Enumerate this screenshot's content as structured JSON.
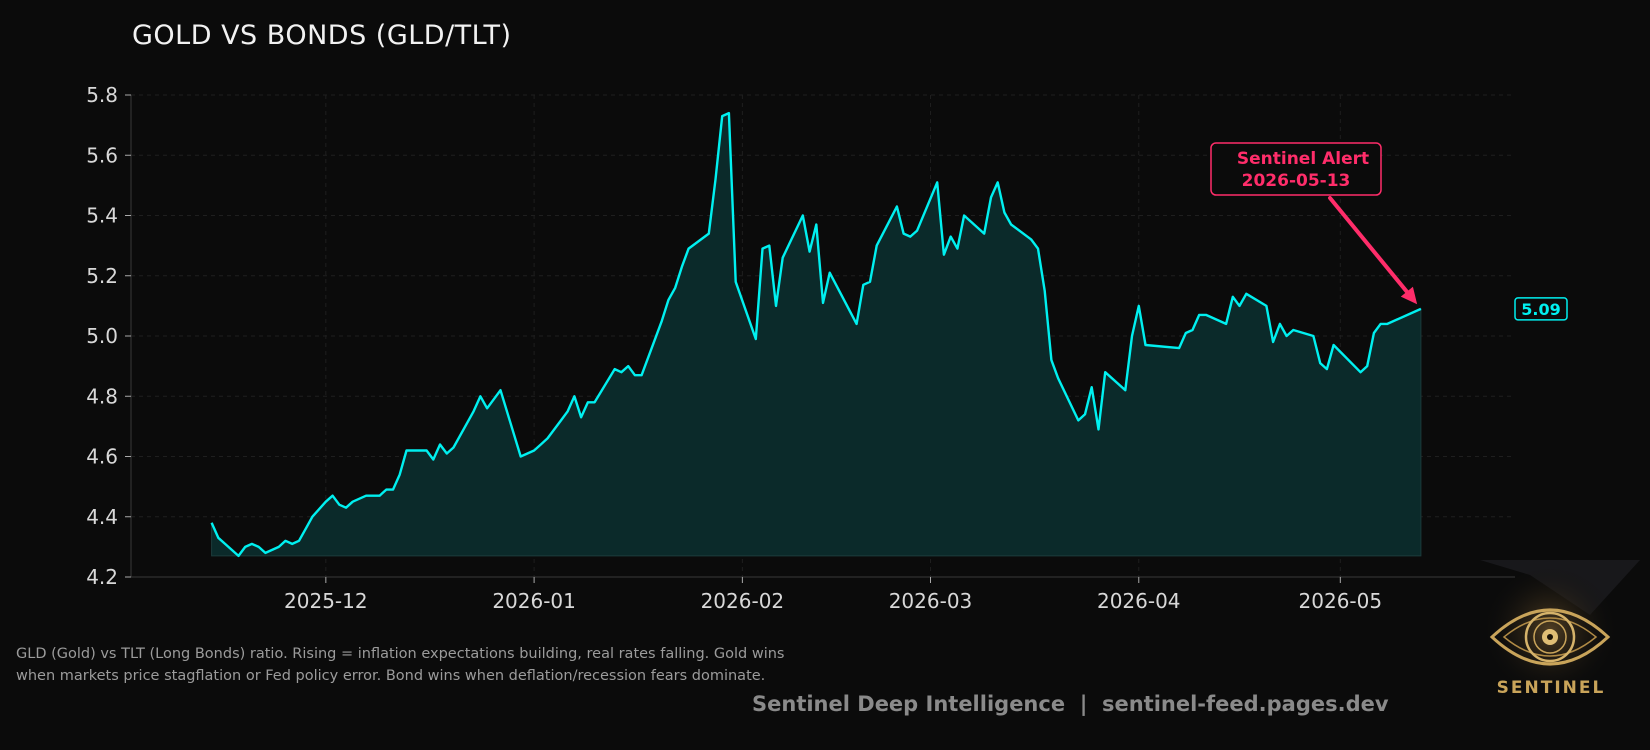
{
  "chart_data": {
    "type": "area",
    "title": "GOLD VS BONDS (GLD/TLT)",
    "xlabel": "",
    "ylabel": "",
    "ylim": [
      4.2,
      5.8
    ],
    "xlim": [
      "2025-11-02",
      "2026-05-27"
    ],
    "grid": true,
    "y_ticks": [
      "4.2",
      "4.4",
      "4.6",
      "4.8",
      "5.0",
      "5.2",
      "5.4",
      "5.6",
      "5.8"
    ],
    "x_ticks": [
      "2025-12",
      "2026-01",
      "2026-02",
      "2026-03",
      "2026-04",
      "2026-05"
    ],
    "series": [
      {
        "color": "#00f0f0",
        "points": [
          [
            "2025-11-14",
            4.38
          ],
          [
            "2025-11-15",
            4.33
          ],
          [
            "2025-11-16",
            4.31
          ],
          [
            "2025-11-17",
            4.29
          ],
          [
            "2025-11-18",
            4.27
          ],
          [
            "2025-11-19",
            4.3
          ],
          [
            "2025-11-20",
            4.31
          ],
          [
            "2025-11-21",
            4.3
          ],
          [
            "2025-11-22",
            4.28
          ],
          [
            "2025-11-24",
            4.3
          ],
          [
            "2025-11-25",
            4.32
          ],
          [
            "2025-11-26",
            4.31
          ],
          [
            "2025-11-27",
            4.32
          ],
          [
            "2025-11-28",
            4.36
          ],
          [
            "2025-11-29",
            4.4
          ],
          [
            "2025-12-01",
            4.45
          ],
          [
            "2025-12-02",
            4.47
          ],
          [
            "2025-12-03",
            4.44
          ],
          [
            "2025-12-04",
            4.43
          ],
          [
            "2025-12-05",
            4.45
          ],
          [
            "2025-12-06",
            4.46
          ],
          [
            "2025-12-07",
            4.47
          ],
          [
            "2025-12-09",
            4.47
          ],
          [
            "2025-12-10",
            4.49
          ],
          [
            "2025-12-11",
            4.49
          ],
          [
            "2025-12-12",
            4.54
          ],
          [
            "2025-12-13",
            4.62
          ],
          [
            "2025-12-16",
            4.62
          ],
          [
            "2025-12-17",
            4.59
          ],
          [
            "2025-12-18",
            4.64
          ],
          [
            "2025-12-19",
            4.61
          ],
          [
            "2025-12-20",
            4.63
          ],
          [
            "2025-12-23",
            4.75
          ],
          [
            "2025-12-24",
            4.8
          ],
          [
            "2025-12-25",
            4.76
          ],
          [
            "2025-12-27",
            4.82
          ],
          [
            "2025-12-30",
            4.6
          ],
          [
            "2025-12-31",
            4.61
          ],
          [
            "2026-01-01",
            4.62
          ],
          [
            "2026-01-02",
            4.64
          ],
          [
            "2026-01-03",
            4.66
          ],
          [
            "2026-01-05",
            4.72
          ],
          [
            "2026-01-06",
            4.75
          ],
          [
            "2026-01-07",
            4.8
          ],
          [
            "2026-01-08",
            4.73
          ],
          [
            "2026-01-09",
            4.78
          ],
          [
            "2026-01-10",
            4.78
          ],
          [
            "2026-01-13",
            4.89
          ],
          [
            "2026-01-14",
            4.88
          ],
          [
            "2026-01-15",
            4.9
          ],
          [
            "2026-01-16",
            4.87
          ],
          [
            "2026-01-17",
            4.87
          ],
          [
            "2026-01-20",
            5.05
          ],
          [
            "2026-01-21",
            5.12
          ],
          [
            "2026-01-22",
            5.16
          ],
          [
            "2026-01-23",
            5.23
          ],
          [
            "2026-01-24",
            5.29
          ],
          [
            "2026-01-27",
            5.34
          ],
          [
            "2026-01-28",
            5.52
          ],
          [
            "2026-01-29",
            5.73
          ],
          [
            "2026-01-30",
            5.74
          ],
          [
            "2026-01-31",
            5.18
          ],
          [
            "2026-02-03",
            4.99
          ],
          [
            "2026-02-04",
            5.29
          ],
          [
            "2026-02-05",
            5.3
          ],
          [
            "2026-02-06",
            5.1
          ],
          [
            "2026-02-07",
            5.26
          ],
          [
            "2026-02-10",
            5.4
          ],
          [
            "2026-02-11",
            5.28
          ],
          [
            "2026-02-12",
            5.37
          ],
          [
            "2026-02-13",
            5.11
          ],
          [
            "2026-02-14",
            5.21
          ],
          [
            "2026-02-18",
            5.04
          ],
          [
            "2026-02-19",
            5.17
          ],
          [
            "2026-02-20",
            5.18
          ],
          [
            "2026-02-21",
            5.3
          ],
          [
            "2026-02-24",
            5.43
          ],
          [
            "2026-02-25",
            5.34
          ],
          [
            "2026-02-26",
            5.33
          ],
          [
            "2026-02-27",
            5.35
          ],
          [
            "2026-03-02",
            5.51
          ],
          [
            "2026-03-03",
            5.27
          ],
          [
            "2026-03-04",
            5.33
          ],
          [
            "2026-03-05",
            5.29
          ],
          [
            "2026-03-06",
            5.4
          ],
          [
            "2026-03-09",
            5.34
          ],
          [
            "2026-03-10",
            5.46
          ],
          [
            "2026-03-11",
            5.51
          ],
          [
            "2026-03-12",
            5.41
          ],
          [
            "2026-03-13",
            5.37
          ],
          [
            "2026-03-16",
            5.32
          ],
          [
            "2026-03-17",
            5.29
          ],
          [
            "2026-03-18",
            5.15
          ],
          [
            "2026-03-19",
            4.92
          ],
          [
            "2026-03-20",
            4.86
          ],
          [
            "2026-03-23",
            4.72
          ],
          [
            "2026-03-24",
            4.74
          ],
          [
            "2026-03-25",
            4.83
          ],
          [
            "2026-03-26",
            4.69
          ],
          [
            "2026-03-27",
            4.88
          ],
          [
            "2026-03-30",
            4.82
          ],
          [
            "2026-03-31",
            5.0
          ],
          [
            "2026-04-01",
            5.1
          ],
          [
            "2026-04-02",
            4.97
          ],
          [
            "2026-04-07",
            4.96
          ],
          [
            "2026-04-08",
            5.01
          ],
          [
            "2026-04-09",
            5.02
          ],
          [
            "2026-04-10",
            5.07
          ],
          [
            "2026-04-11",
            5.07
          ],
          [
            "2026-04-14",
            5.04
          ],
          [
            "2026-04-15",
            5.13
          ],
          [
            "2026-04-16",
            5.1
          ],
          [
            "2026-04-17",
            5.14
          ],
          [
            "2026-04-20",
            5.1
          ],
          [
            "2026-04-21",
            4.98
          ],
          [
            "2026-04-22",
            5.04
          ],
          [
            "2026-04-23",
            5.0
          ],
          [
            "2026-04-24",
            5.02
          ],
          [
            "2026-04-27",
            5.0
          ],
          [
            "2026-04-28",
            4.91
          ],
          [
            "2026-04-29",
            4.89
          ],
          [
            "2026-04-30",
            4.97
          ],
          [
            "2026-05-04",
            4.88
          ],
          [
            "2026-05-05",
            4.9
          ],
          [
            "2026-05-06",
            5.01
          ],
          [
            "2026-05-07",
            5.04
          ],
          [
            "2026-05-08",
            5.04
          ],
          [
            "2026-05-13",
            5.09
          ]
        ]
      }
    ],
    "fill_baseline": 4.27,
    "fill_color": "#0b2a2a",
    "last_value_label": "5.09",
    "annotation": {
      "line1": "Sentinel Alert",
      "line2": "2026-05-13",
      "target_date": "2026-05-13",
      "target_value": 5.09,
      "color": "#ff2d6a"
    }
  },
  "caption": "GLD (Gold) vs TLT (Long Bonds) ratio. Rising = inflation expectations building, real rates falling. Gold wins when markets price stagflation or Fed policy error. Bond wins when deflation/recession fears dominate.",
  "footer": "Sentinel Deep Intelligence  |  sentinel-feed.pages.dev",
  "logo": {
    "wordmark": "SENTINEL",
    "icon": "eye-icon",
    "color": "#c9a45a"
  }
}
